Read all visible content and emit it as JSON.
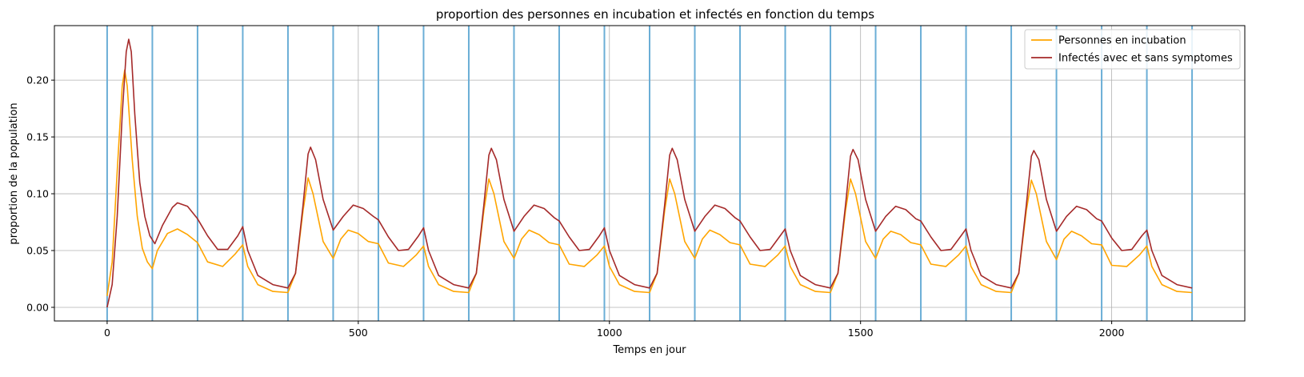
{
  "chart_data": {
    "type": "line",
    "title": "proportion des personnes en incubation et infectés en fonction du temps",
    "xlabel": "Temps en jour",
    "ylabel": "proportion de la population",
    "xlim": [
      -105,
      2265
    ],
    "ylim": [
      -0.012,
      0.248
    ],
    "xticks": [
      0,
      500,
      1000,
      1500,
      2000
    ],
    "xtick_labels": [
      "0",
      "500",
      "1000",
      "1500",
      "2000"
    ],
    "yticks": [
      0.0,
      0.05,
      0.1,
      0.15,
      0.2
    ],
    "ytick_labels": [
      "0.00",
      "0.05",
      "0.10",
      "0.15",
      "0.20"
    ],
    "grid": true,
    "legend_position": "top-right",
    "vlines": {
      "color": "#6baed6",
      "x": [
        0,
        90,
        180,
        270,
        360,
        450,
        540,
        630,
        720,
        810,
        900,
        990,
        1080,
        1170,
        1260,
        1350,
        1440,
        1530,
        1620,
        1710,
        1800,
        1890,
        1980,
        2070,
        2160
      ]
    },
    "series": [
      {
        "name": "Personnes en incubation",
        "color": "#ffa500",
        "x": [
          0,
          10,
          20,
          30,
          35,
          40,
          50,
          60,
          70,
          80,
          90,
          100,
          120,
          140,
          160,
          180,
          200,
          230,
          255,
          270,
          280,
          300,
          330,
          360,
          375,
          390,
          400,
          410,
          430,
          450,
          465,
          480,
          500,
          520,
          540,
          560,
          590,
          615,
          630,
          640,
          660,
          690,
          720,
          735,
          750,
          760,
          770,
          790,
          810,
          825,
          840,
          860,
          880,
          900,
          920,
          950,
          975,
          990,
          1000,
          1020,
          1050,
          1080,
          1095,
          1110,
          1120,
          1130,
          1150,
          1170,
          1185,
          1200,
          1220,
          1240,
          1260,
          1280,
          1310,
          1335,
          1350,
          1360,
          1380,
          1410,
          1440,
          1455,
          1470,
          1480,
          1490,
          1510,
          1530,
          1545,
          1560,
          1580,
          1600,
          1620,
          1640,
          1670,
          1695,
          1710,
          1720,
          1740,
          1770,
          1800,
          1815,
          1830,
          1840,
          1850,
          1870,
          1890,
          1905,
          1920,
          1940,
          1960,
          1980,
          2000,
          2030,
          2055,
          2070,
          2080,
          2100,
          2130,
          2160
        ],
        "values": [
          0.01,
          0.04,
          0.12,
          0.195,
          0.209,
          0.195,
          0.13,
          0.08,
          0.052,
          0.04,
          0.034,
          0.05,
          0.065,
          0.069,
          0.064,
          0.057,
          0.04,
          0.036,
          0.047,
          0.055,
          0.036,
          0.02,
          0.014,
          0.013,
          0.03,
          0.085,
          0.114,
          0.1,
          0.058,
          0.043,
          0.06,
          0.068,
          0.065,
          0.058,
          0.056,
          0.039,
          0.036,
          0.046,
          0.054,
          0.036,
          0.02,
          0.014,
          0.013,
          0.03,
          0.085,
          0.113,
          0.1,
          0.058,
          0.043,
          0.06,
          0.068,
          0.064,
          0.057,
          0.055,
          0.038,
          0.036,
          0.046,
          0.054,
          0.036,
          0.02,
          0.014,
          0.013,
          0.03,
          0.085,
          0.113,
          0.1,
          0.058,
          0.043,
          0.06,
          0.068,
          0.064,
          0.057,
          0.055,
          0.038,
          0.036,
          0.046,
          0.054,
          0.036,
          0.02,
          0.014,
          0.013,
          0.03,
          0.085,
          0.113,
          0.1,
          0.058,
          0.043,
          0.06,
          0.067,
          0.064,
          0.057,
          0.055,
          0.038,
          0.036,
          0.046,
          0.054,
          0.036,
          0.02,
          0.014,
          0.013,
          0.03,
          0.085,
          0.112,
          0.1,
          0.058,
          0.042,
          0.06,
          0.067,
          0.063,
          0.056,
          0.055,
          0.037,
          0.036,
          0.046,
          0.054,
          0.036,
          0.02,
          0.014,
          0.013
        ]
      },
      {
        "name": "Infectés avec et sans symptomes",
        "color": "#a52a2a",
        "x": [
          0,
          10,
          20,
          30,
          38,
          43,
          48,
          55,
          65,
          75,
          85,
          95,
          110,
          130,
          140,
          160,
          180,
          200,
          220,
          240,
          260,
          270,
          280,
          300,
          330,
          360,
          375,
          390,
          400,
          405,
          415,
          430,
          450,
          470,
          490,
          510,
          530,
          540,
          560,
          580,
          600,
          620,
          630,
          640,
          660,
          690,
          720,
          735,
          750,
          760,
          765,
          775,
          790,
          810,
          830,
          850,
          870,
          890,
          900,
          920,
          940,
          960,
          980,
          990,
          1000,
          1020,
          1050,
          1080,
          1095,
          1110,
          1120,
          1125,
          1135,
          1150,
          1170,
          1190,
          1210,
          1230,
          1250,
          1260,
          1280,
          1300,
          1320,
          1340,
          1350,
          1360,
          1380,
          1410,
          1440,
          1455,
          1470,
          1480,
          1485,
          1495,
          1510,
          1530,
          1550,
          1570,
          1590,
          1610,
          1620,
          1640,
          1660,
          1680,
          1700,
          1710,
          1720,
          1740,
          1770,
          1800,
          1815,
          1830,
          1840,
          1845,
          1855,
          1870,
          1890,
          1910,
          1930,
          1950,
          1970,
          1980,
          2000,
          2020,
          2040,
          2060,
          2070,
          2080,
          2100,
          2130,
          2160
        ],
        "values": [
          0.0,
          0.02,
          0.08,
          0.17,
          0.225,
          0.236,
          0.225,
          0.17,
          0.11,
          0.08,
          0.063,
          0.056,
          0.072,
          0.088,
          0.092,
          0.089,
          0.078,
          0.063,
          0.051,
          0.051,
          0.063,
          0.071,
          0.05,
          0.028,
          0.02,
          0.017,
          0.03,
          0.09,
          0.135,
          0.141,
          0.13,
          0.095,
          0.068,
          0.08,
          0.09,
          0.087,
          0.08,
          0.077,
          0.062,
          0.05,
          0.051,
          0.063,
          0.07,
          0.05,
          0.028,
          0.02,
          0.017,
          0.03,
          0.09,
          0.134,
          0.14,
          0.13,
          0.095,
          0.067,
          0.08,
          0.09,
          0.087,
          0.079,
          0.076,
          0.062,
          0.05,
          0.051,
          0.063,
          0.07,
          0.05,
          0.028,
          0.02,
          0.017,
          0.03,
          0.09,
          0.134,
          0.14,
          0.13,
          0.095,
          0.067,
          0.08,
          0.09,
          0.087,
          0.079,
          0.076,
          0.062,
          0.05,
          0.051,
          0.063,
          0.069,
          0.05,
          0.028,
          0.02,
          0.017,
          0.03,
          0.09,
          0.133,
          0.139,
          0.13,
          0.095,
          0.067,
          0.08,
          0.089,
          0.086,
          0.078,
          0.076,
          0.062,
          0.05,
          0.051,
          0.063,
          0.069,
          0.05,
          0.028,
          0.02,
          0.017,
          0.03,
          0.09,
          0.133,
          0.138,
          0.13,
          0.095,
          0.067,
          0.08,
          0.089,
          0.086,
          0.078,
          0.076,
          0.061,
          0.05,
          0.051,
          0.063,
          0.068,
          0.05,
          0.028,
          0.02,
          0.017
        ]
      }
    ]
  }
}
